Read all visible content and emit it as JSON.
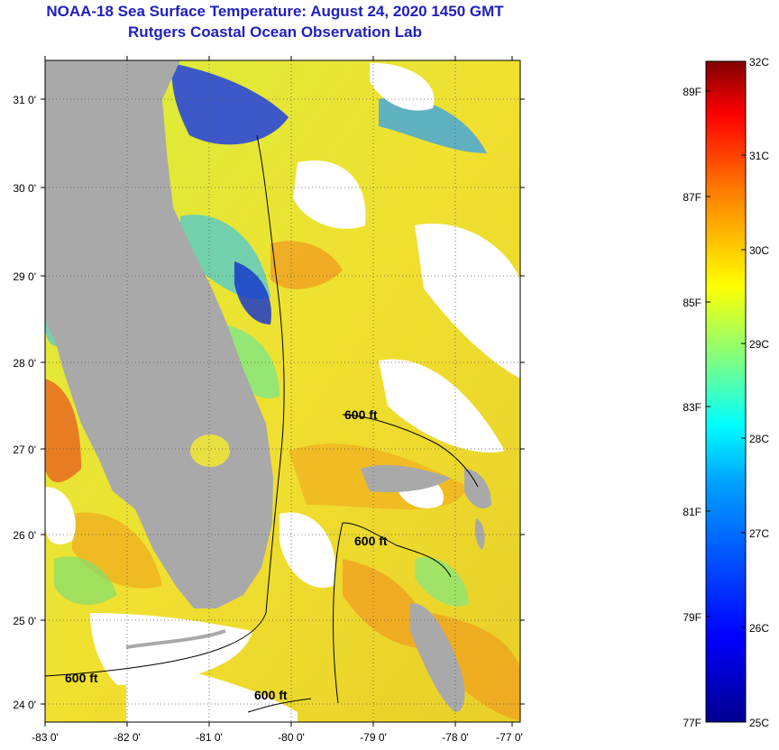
{
  "title": {
    "line1": "NOAA-18 Sea Surface Temperature:  August 24, 2020 1450 GMT",
    "line2": "Rutgers Coastal Ocean Observation Lab"
  },
  "axes": {
    "lat_labels": [
      "31 0'",
      "30 0'",
      "29 0'",
      "28 0'",
      "27 0'",
      "26 0'",
      "25 0'",
      "24 0'"
    ],
    "lon_labels": [
      "-83 0'",
      "-82 0'",
      "-81 0'",
      "-80 0'",
      "-79 0'",
      "-78 0'",
      "-77 0'"
    ]
  },
  "contour_labels": [
    "600 ft",
    "600 ft",
    "600 ft",
    "600 ft"
  ],
  "colorbar": {
    "celsius": [
      "32C",
      "31C",
      "30C",
      "29C",
      "28C",
      "27C",
      "26C",
      "25C"
    ],
    "fahrenheit": [
      "89F",
      "87F",
      "85F",
      "83F",
      "81F",
      "79F",
      "77F"
    ],
    "colors": [
      "#00008f",
      "#0000ff",
      "#0080ff",
      "#00ffff",
      "#80ff80",
      "#ffff00",
      "#ff8000",
      "#ff0000",
      "#800000"
    ]
  },
  "palette": {
    "land": "#a9a9a9",
    "nodata": "#ffffff",
    "title_color": "#1f1fbf"
  }
}
